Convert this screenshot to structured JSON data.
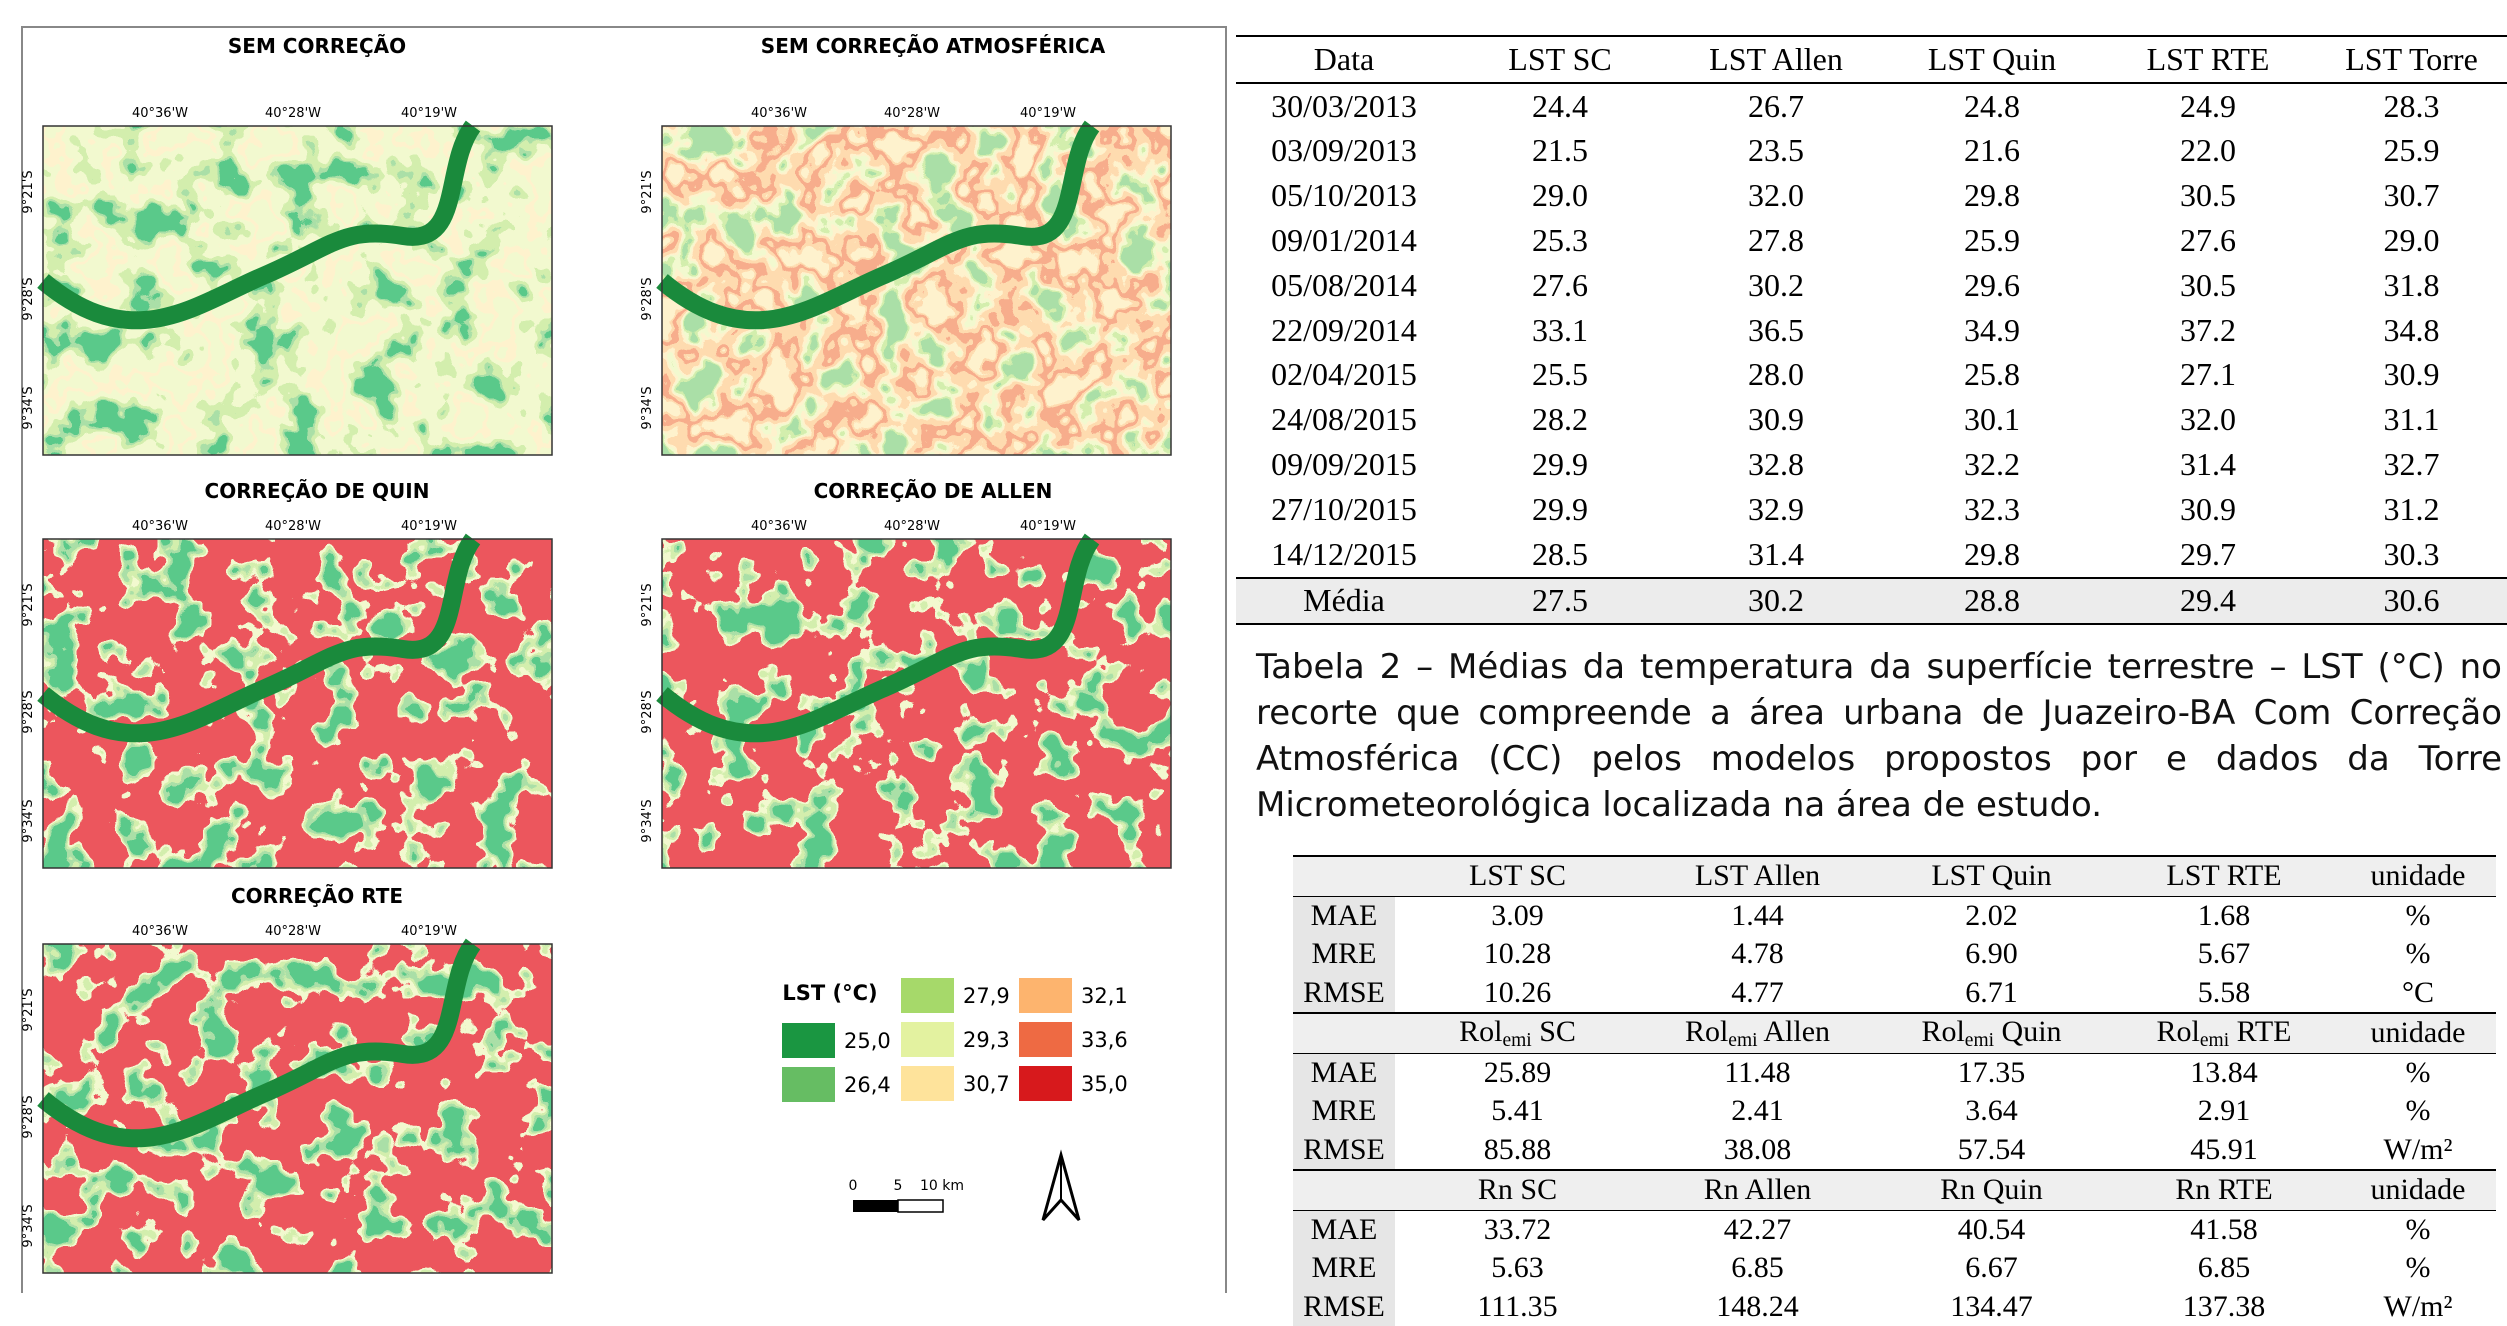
{
  "maps": {
    "panels": [
      {
        "title": "SEM CORREÇÃO"
      },
      {
        "title": "SEM CORREÇÃO ATMOSFÉRICA"
      },
      {
        "title": "CORREÇÃO DE QUIN"
      },
      {
        "title": "CORREÇÃO DE ALLEN"
      },
      {
        "title": "CORREÇÃO RTE"
      }
    ],
    "lon_labels": [
      "40°36'W",
      "40°28'W",
      "40°19'W"
    ],
    "lat_labels": [
      "9°21'S",
      "9°28'S",
      "9°34'S"
    ]
  },
  "legend": {
    "title": "LST (°C)",
    "items": [
      {
        "label": "25,0",
        "color": "#1a9641"
      },
      {
        "label": "26,4",
        "color": "#66bd63"
      },
      {
        "label": "27,9",
        "color": "#a6d96a"
      },
      {
        "label": "29,3",
        "color": "#e3f2a0"
      },
      {
        "label": "30,7",
        "color": "#fee39b"
      },
      {
        "label": "32,1",
        "color": "#fdb46e"
      },
      {
        "label": "33,6",
        "color": "#ee6a43"
      },
      {
        "label": "35,0",
        "color": "#d7191c"
      }
    ]
  },
  "scale_bar": {
    "labels": [
      "0",
      "5",
      "10 km"
    ]
  },
  "table1": {
    "columns": [
      "Data",
      "LST SC",
      "LST Allen",
      "LST Quin",
      "LST RTE",
      "LST Torre"
    ],
    "rows": [
      [
        "30/03/2013",
        "24.4",
        "26.7",
        "24.8",
        "24.9",
        "28.3"
      ],
      [
        "03/09/2013",
        "21.5",
        "23.5",
        "21.6",
        "22.0",
        "25.9"
      ],
      [
        "05/10/2013",
        "29.0",
        "32.0",
        "29.8",
        "30.5",
        "30.7"
      ],
      [
        "09/01/2014",
        "25.3",
        "27.8",
        "25.9",
        "27.6",
        "29.0"
      ],
      [
        "05/08/2014",
        "27.6",
        "30.2",
        "29.6",
        "30.5",
        "31.8"
      ],
      [
        "22/09/2014",
        "33.1",
        "36.5",
        "34.9",
        "37.2",
        "34.8"
      ],
      [
        "02/04/2015",
        "25.5",
        "28.0",
        "25.8",
        "27.1",
        "30.9"
      ],
      [
        "24/08/2015",
        "28.2",
        "30.9",
        "30.1",
        "32.0",
        "31.1"
      ],
      [
        "09/09/2015",
        "29.9",
        "32.8",
        "32.2",
        "31.4",
        "32.7"
      ],
      [
        "27/10/2015",
        "29.9",
        "32.9",
        "32.3",
        "30.9",
        "31.2"
      ],
      [
        "14/12/2015",
        "28.5",
        "31.4",
        "29.8",
        "29.7",
        "30.3"
      ]
    ],
    "footer": [
      "Média",
      "27.5",
      "30.2",
      "28.8",
      "29.4",
      "30.6"
    ]
  },
  "caption": "Tabela 2 – Médias da temperatura da superfície terrestre – LST (°C) no recorte que compreende a área urbana de Juazeiro-BA Com Correção Atmosférica (CC) pelos modelos propostos por e dados da Torre Micrometeorológica localizada na área de estudo.",
  "table2": {
    "sections": [
      {
        "header": [
          null,
          "LST SC",
          "LST Allen",
          "LST Quin",
          "LST RTE",
          "unidade"
        ],
        "rows": [
          [
            "MAE",
            "3.09",
            "1.44",
            "2.02",
            "1.68",
            "%"
          ],
          [
            "MRE",
            "10.28",
            "4.78",
            "6.90",
            "5.67",
            "%"
          ],
          [
            "RMSE",
            "10.26",
            "4.77",
            "6.71",
            "5.58",
            "°C"
          ]
        ]
      },
      {
        "header": [
          null,
          {
            "text": "Rol",
            "sub": "emi",
            "after": " SC"
          },
          {
            "text": "Rol",
            "sub": "emi",
            "after": " Allen"
          },
          {
            "text": "Rol",
            "sub": "emi",
            "after": " Quin"
          },
          {
            "text": "Rol",
            "sub": "emi",
            "after": " RTE"
          },
          "unidade"
        ],
        "rows": [
          [
            "MAE",
            "25.89",
            "11.48",
            "17.35",
            "13.84",
            "%"
          ],
          [
            "MRE",
            "5.41",
            "2.41",
            "3.64",
            "2.91",
            "%"
          ],
          [
            "RMSE",
            "85.88",
            "38.08",
            "57.54",
            "45.91",
            "W/m²"
          ]
        ]
      },
      {
        "header": [
          null,
          "Rn SC",
          "Rn Allen",
          "Rn Quin",
          "Rn RTE",
          "unidade"
        ],
        "rows": [
          [
            "MAE",
            "33.72",
            "42.27",
            "40.54",
            "41.58",
            "%"
          ],
          [
            "MRE",
            "5.63",
            "6.85",
            "6.67",
            "6.85",
            "%"
          ],
          [
            "RMSE",
            "111.35",
            "148.24",
            "134.47",
            "137.38",
            "W/m²"
          ]
        ]
      }
    ]
  }
}
